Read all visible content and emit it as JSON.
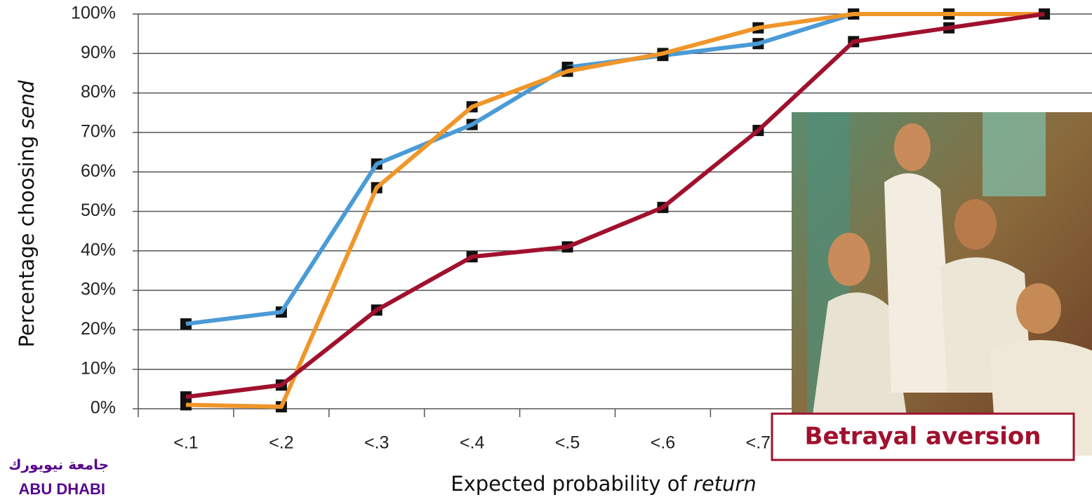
{
  "chart_data": {
    "type": "line",
    "ylabel": [
      "Percentage choosing",
      "send"
    ],
    "xlabel": [
      "Expected probability of",
      "return"
    ],
    "categories": [
      "<.1",
      "<.2",
      "<.3",
      "<.4",
      "<.5",
      "<.6",
      "<.7",
      null,
      null,
      null
    ],
    "series": [
      {
        "color": "#4a9bd6",
        "values": [
          21.5,
          24.5,
          62,
          72,
          86.5,
          89.5,
          92.5,
          100,
          100,
          100
        ]
      },
      {
        "color": "#f0962a",
        "values": [
          1,
          0.5,
          56,
          76.5,
          85.5,
          90,
          96.5,
          100,
          100,
          100
        ]
      },
      {
        "color": "#a0112e",
        "values": [
          3,
          6,
          25,
          38.5,
          41,
          51,
          70.5,
          93,
          96.5,
          100
        ]
      }
    ],
    "ylim": [
      0,
      100
    ],
    "yticks": [
      {
        "value": 0,
        "label": "0%"
      },
      {
        "value": 10,
        "label": "10%"
      },
      {
        "value": 20,
        "label": "20%"
      },
      {
        "value": 30,
        "label": "30%"
      },
      {
        "value": 40,
        "label": "40%"
      },
      {
        "value": 50,
        "label": "50%"
      },
      {
        "value": 60,
        "label": "60%"
      },
      {
        "value": 70,
        "label": "70%"
      },
      {
        "value": 80,
        "label": "80%"
      },
      {
        "value": 90,
        "label": "90%"
      },
      {
        "value": 100,
        "label": "100%"
      }
    ],
    "grid": true,
    "callout": "Betrayal aversion",
    "logo": [
      "جامعة نيويورك",
      "ABU DHABI"
    ]
  }
}
